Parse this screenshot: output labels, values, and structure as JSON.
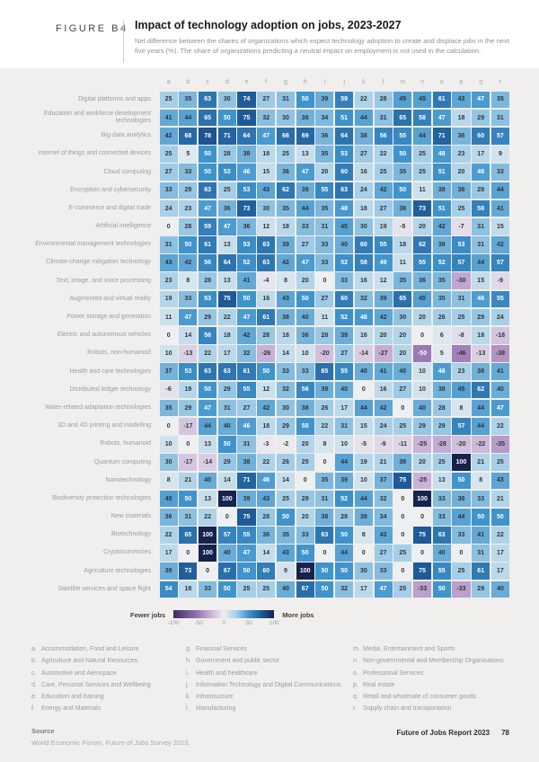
{
  "header": {
    "figure_label": "FIGURE B4",
    "title": "Impact of technology adoption on jobs, 2023-2027",
    "subtitle": "Net difference between the shares of organizations which expect technology adoption to create and displace jobs in the next five years (%). The share of organizations predicting a neutral impact on employment is not used in the calculation."
  },
  "chart_data": {
    "type": "heatmap",
    "columns": [
      "a",
      "b",
      "c",
      "d",
      "e",
      "f",
      "g",
      "h",
      "i",
      "j",
      "k",
      "l",
      "m",
      "n",
      "o",
      "p",
      "q",
      "r"
    ],
    "value_range": [
      -100,
      100
    ],
    "rows": [
      {
        "label": "Digital platforms and apps",
        "values": [
          25,
          35,
          63,
          30,
          74,
          27,
          31,
          50,
          39,
          59,
          22,
          28,
          45,
          45,
          61,
          43,
          47,
          35
        ]
      },
      {
        "label": "Education and workforce development technologies",
        "values": [
          41,
          44,
          65,
          50,
          75,
          32,
          30,
          38,
          34,
          51,
          44,
          31,
          65,
          58,
          47,
          18,
          29,
          31
        ]
      },
      {
        "label": "Big-data analytics",
        "values": [
          42,
          68,
          78,
          71,
          64,
          47,
          66,
          69,
          36,
          64,
          38,
          56,
          55,
          44,
          71,
          36,
          60,
          57
        ]
      },
      {
        "label": "Internet of things and connected devices",
        "values": [
          25,
          5,
          50,
          28,
          38,
          18,
          25,
          13,
          35,
          53,
          27,
          22,
          50,
          25,
          48,
          23,
          17,
          9
        ]
      },
      {
        "label": "Cloud computing",
        "values": [
          27,
          33,
          50,
          53,
          46,
          15,
          36,
          47,
          20,
          60,
          16,
          25,
          35,
          25,
          51,
          20,
          46,
          33
        ]
      },
      {
        "label": "Encryption and cybersecurity",
        "values": [
          33,
          29,
          63,
          25,
          53,
          43,
          62,
          39,
          55,
          63,
          24,
          42,
          50,
          11,
          38,
          38,
          28,
          44
        ]
      },
      {
        "label": "E-commerce and digital trade",
        "values": [
          24,
          23,
          47,
          36,
          73,
          30,
          35,
          44,
          35,
          48,
          18,
          27,
          38,
          73,
          51,
          25,
          58,
          41
        ]
      },
      {
        "label": "Artificial intelligence",
        "values": [
          0,
          28,
          59,
          47,
          36,
          12,
          18,
          33,
          31,
          45,
          30,
          19,
          -5,
          20,
          42,
          -7,
          31,
          15
        ]
      },
      {
        "label": "Environmental management technologies",
        "values": [
          31,
          50,
          61,
          13,
          53,
          63,
          39,
          27,
          33,
          40,
          60,
          55,
          18,
          62,
          38,
          53,
          31,
          42
        ]
      },
      {
        "label": "Climate-change mitigation technology",
        "values": [
          43,
          42,
          56,
          64,
          52,
          63,
          42,
          47,
          33,
          52,
          58,
          49,
          11,
          55,
          52,
          57,
          44,
          57
        ]
      },
      {
        "label": "Text, image, and voice processing",
        "values": [
          23,
          8,
          28,
          13,
          41,
          -4,
          8,
          20,
          0,
          33,
          16,
          12,
          35,
          36,
          35,
          -30,
          15,
          -9
        ]
      },
      {
        "label": "Augmented and virtual reality",
        "values": [
          19,
          33,
          53,
          75,
          50,
          16,
          43,
          50,
          27,
          60,
          32,
          39,
          65,
          45,
          35,
          31,
          46,
          55
        ]
      },
      {
        "label": "Power storage and generation",
        "values": [
          11,
          47,
          29,
          22,
          47,
          61,
          38,
          40,
          11,
          52,
          48,
          42,
          30,
          20,
          26,
          25,
          29,
          24
        ]
      },
      {
        "label": "Electric and autonomous vehicles",
        "values": [
          0,
          14,
          56,
          18,
          42,
          28,
          18,
          36,
          28,
          39,
          16,
          20,
          20,
          0,
          6,
          -8,
          18,
          -18
        ]
      },
      {
        "label": "Robots, non-humanoid",
        "values": [
          10,
          -13,
          22,
          17,
          32,
          -26,
          14,
          10,
          -20,
          27,
          -14,
          -27,
          20,
          -50,
          5,
          -46,
          -13,
          -38
        ]
      },
      {
        "label": "Health and care technologies",
        "values": [
          37,
          53,
          63,
          63,
          61,
          50,
          33,
          33,
          65,
          55,
          40,
          41,
          40,
          10,
          46,
          23,
          38,
          41
        ]
      },
      {
        "label": "Distributed ledger technology",
        "values": [
          -6,
          19,
          50,
          29,
          55,
          12,
          32,
          56,
          39,
          40,
          0,
          16,
          27,
          10,
          38,
          45,
          62,
          40
        ]
      },
      {
        "label": "Water-related adaptation technologies",
        "values": [
          35,
          29,
          47,
          31,
          27,
          42,
          30,
          38,
          26,
          17,
          44,
          42,
          0,
          40,
          28,
          8,
          44,
          47
        ]
      },
      {
        "label": "3D and 4D printing and modelling",
        "values": [
          0,
          -17,
          44,
          40,
          46,
          18,
          29,
          50,
          22,
          31,
          15,
          24,
          25,
          29,
          29,
          57,
          44,
          22
        ]
      },
      {
        "label": "Robots, humanoid",
        "values": [
          10,
          0,
          13,
          50,
          31,
          -3,
          -2,
          20,
          8,
          10,
          -5,
          -9,
          -11,
          -25,
          -28,
          -20,
          -22,
          -35
        ]
      },
      {
        "label": "Quantum computing",
        "values": [
          30,
          -17,
          -14,
          29,
          38,
          22,
          26,
          25,
          0,
          44,
          19,
          21,
          38,
          20,
          25,
          100,
          21,
          25
        ]
      },
      {
        "label": "Nanotechnology",
        "values": [
          8,
          21,
          40,
          14,
          71,
          46,
          14,
          0,
          35,
          39,
          10,
          37,
          75,
          -25,
          13,
          50,
          8,
          43
        ]
      },
      {
        "label": "Biodiversity protection technologies",
        "values": [
          45,
          50,
          13,
          100,
          39,
          43,
          25,
          29,
          31,
          52,
          44,
          32,
          0,
          100,
          33,
          38,
          33,
          21
        ]
      },
      {
        "label": "New materials",
        "values": [
          36,
          31,
          22,
          0,
          75,
          28,
          50,
          20,
          38,
          28,
          39,
          34,
          0,
          0,
          33,
          44,
          50,
          50
        ]
      },
      {
        "label": "Biotechnology",
        "values": [
          22,
          65,
          100,
          57,
          55,
          36,
          35,
          33,
          63,
          50,
          8,
          43,
          0,
          75,
          63,
          33,
          41,
          22
        ]
      },
      {
        "label": "Cryptocurrencies",
        "values": [
          17,
          0,
          100,
          40,
          47,
          14,
          43,
          50,
          0,
          44,
          0,
          27,
          25,
          0,
          40,
          0,
          31,
          17
        ]
      },
      {
        "label": "Agriculture technologies",
        "values": [
          39,
          73,
          0,
          67,
          50,
          60,
          9,
          100,
          50,
          50,
          30,
          33,
          0,
          75,
          55,
          25,
          61,
          17
        ]
      },
      {
        "label": "Satellite services and space flight",
        "values": [
          54,
          18,
          33,
          50,
          25,
          25,
          40,
          67,
          50,
          32,
          17,
          47,
          25,
          -33,
          50,
          -33,
          29,
          40
        ]
      }
    ],
    "color_scale": {
      "stops": [
        {
          "v": -100,
          "c": "#3e2a60"
        },
        {
          "v": -50,
          "c": "#9b78b6"
        },
        {
          "v": -25,
          "c": "#c9b3d8"
        },
        {
          "v": 0,
          "c": "#edeff1"
        },
        {
          "v": 25,
          "c": "#a5cfe8"
        },
        {
          "v": 50,
          "c": "#3f94cc"
        },
        {
          "v": 75,
          "c": "#1e5a97"
        },
        {
          "v": 100,
          "c": "#16234d"
        }
      ],
      "dark_text": "#333333",
      "light_text": "#ffffff"
    },
    "legend": {
      "left_label": "Fewer jobs",
      "right_label": "More jobs",
      "ticks": [
        "-100",
        "-50",
        "0",
        "50",
        "100"
      ]
    }
  },
  "footnotes": {
    "columns": [
      [
        {
          "key": "a.",
          "text": "Accommodation, Food and Leisure"
        },
        {
          "key": "b.",
          "text": "Agriculture and Natural Resources"
        },
        {
          "key": "c.",
          "text": "Automotive and Aerospace"
        },
        {
          "key": "d.",
          "text": "Care, Personal Services and Wellbeing"
        },
        {
          "key": "e.",
          "text": "Education and training"
        },
        {
          "key": "f.",
          "text": "Energy and Materials"
        }
      ],
      [
        {
          "key": "g.",
          "text": "Financial Services"
        },
        {
          "key": "h.",
          "text": "Government and public sector"
        },
        {
          "key": "i.",
          "text": "Health and healthcare"
        },
        {
          "key": "j.",
          "text": "Information Technology and Digital Communications"
        },
        {
          "key": "k.",
          "text": "Infrastructure"
        },
        {
          "key": "l.",
          "text": "Manufacturing"
        }
      ],
      [
        {
          "key": "m.",
          "text": "Media, Entertainment and Sports"
        },
        {
          "key": "n.",
          "text": "Non-governmental and Membership Organisations"
        },
        {
          "key": "o.",
          "text": "Professional Services"
        },
        {
          "key": "p.",
          "text": "Real estate"
        },
        {
          "key": "q.",
          "text": "Retail and wholesale of consumer goods"
        },
        {
          "key": "r.",
          "text": "Supply chain and transportation"
        }
      ]
    ]
  },
  "source": {
    "heading": "Source",
    "text": "World Economic Forum, Future of Jobs Survey 2023."
  },
  "footer": {
    "report": "Future of Jobs Report 2023",
    "page": "78"
  }
}
